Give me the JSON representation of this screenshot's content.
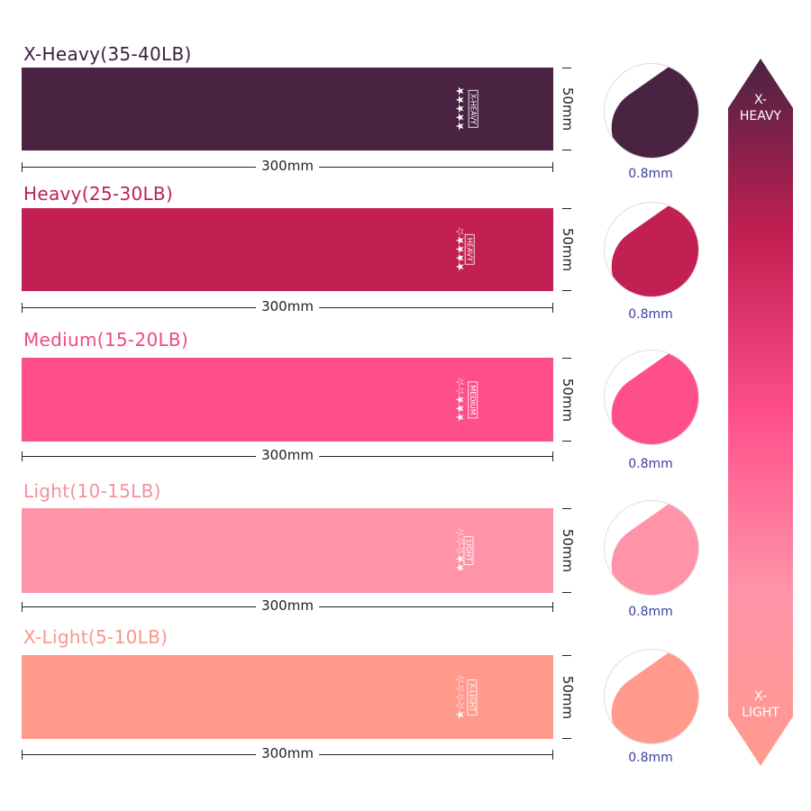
{
  "bands": [
    {
      "title": "X-Heavy(35-40LB)",
      "tag": "X-HEAVY",
      "stars": 5,
      "length": "300mm",
      "width": "50mm",
      "thickness": "0.8mm",
      "color": "#4a2343",
      "title_color": "#3a1f3f"
    },
    {
      "title": "Heavy(25-30LB)",
      "tag": "HEAVY",
      "stars": 4,
      "length": "300mm",
      "width": "50mm",
      "thickness": "0.8mm",
      "color": "#c21f52",
      "title_color": "#c0224f"
    },
    {
      "title": "Medium(15-20LB)",
      "tag": "MEDIUM",
      "stars": 3,
      "length": "300mm",
      "width": "50mm",
      "thickness": "0.8mm",
      "color": "#ff4f8b",
      "title_color": "#f04a80"
    },
    {
      "title": "Light(10-15LB)",
      "tag": "LIGHT",
      "stars": 2,
      "length": "300mm",
      "width": "50mm",
      "thickness": "0.8mm",
      "color": "#ff93a8",
      "title_color": "#f5909e"
    },
    {
      "title": "X-Light(5-10LB)",
      "tag": "X-LIGHT",
      "stars": 1,
      "length": "300mm",
      "width": "50mm",
      "thickness": "0.8mm",
      "color": "#ff9a8d",
      "title_color": "#f5998a"
    }
  ],
  "scale": {
    "top_label": "X-\nHEAVY",
    "bottom_label": "X-\nLIGHT",
    "gradient": [
      "#4a2343",
      "#c21f52",
      "#ff4f8b",
      "#ff93a8",
      "#ff9a8d"
    ]
  }
}
